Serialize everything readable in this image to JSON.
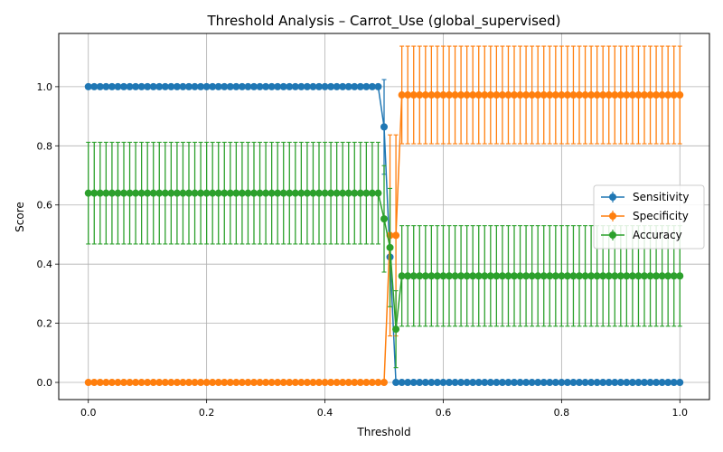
{
  "chart_data": {
    "type": "line",
    "title": "Threshold Analysis – Carrot_Use (global_supervised)",
    "xlabel": "Threshold",
    "ylabel": "Score",
    "xlim": [
      -0.05,
      1.05
    ],
    "ylim": [
      -0.058,
      1.18
    ],
    "xticks": [
      0.0,
      0.2,
      0.4,
      0.6,
      0.8,
      1.0
    ],
    "xtick_labels": [
      "0.0",
      "0.2",
      "0.4",
      "0.6",
      "0.8",
      "1.0"
    ],
    "yticks": [
      0.0,
      0.2,
      0.4,
      0.6,
      0.8,
      1.0
    ],
    "ytick_labels": [
      "0.0",
      "0.2",
      "0.4",
      "0.6",
      "0.8",
      "1.0"
    ],
    "grid": true,
    "legend_position": "center-right",
    "x_grid": {
      "start": 0.0,
      "stop": 1.0,
      "count": 101
    },
    "series": [
      {
        "name": "Sensitivity",
        "color": "#1f77b4",
        "segments": [
          {
            "from": 0.0,
            "to": 0.49,
            "value": 1.0,
            "err": 0.0
          },
          {
            "at": 0.5,
            "value": 0.864,
            "err": 0.16
          },
          {
            "at": 0.51,
            "value": 0.424,
            "err": 0.0
          },
          {
            "at": 0.52,
            "value": 0.0,
            "err": 0.0
          },
          {
            "from": 0.53,
            "to": 1.0,
            "value": 0.0,
            "err": 0.0
          }
        ]
      },
      {
        "name": "Specificity",
        "color": "#ff7f0e",
        "segments": [
          {
            "from": 0.0,
            "to": 0.5,
            "value": 0.0,
            "err": 0.0
          },
          {
            "at": 0.51,
            "value": 0.497,
            "err": 0.34
          },
          {
            "at": 0.52,
            "value": 0.497,
            "err": 0.34
          },
          {
            "from": 0.53,
            "to": 1.0,
            "value": 0.972,
            "err": 0.165
          }
        ]
      },
      {
        "name": "Accuracy",
        "color": "#2ca02c",
        "segments": [
          {
            "from": 0.0,
            "to": 0.49,
            "value": 0.64,
            "err": 0.172
          },
          {
            "at": 0.5,
            "value": 0.553,
            "err": 0.18
          },
          {
            "at": 0.51,
            "value": 0.456,
            "err": 0.2
          },
          {
            "at": 0.52,
            "value": 0.18,
            "err": 0.13
          },
          {
            "from": 0.53,
            "to": 1.0,
            "value": 0.36,
            "err": 0.17
          }
        ]
      }
    ]
  }
}
